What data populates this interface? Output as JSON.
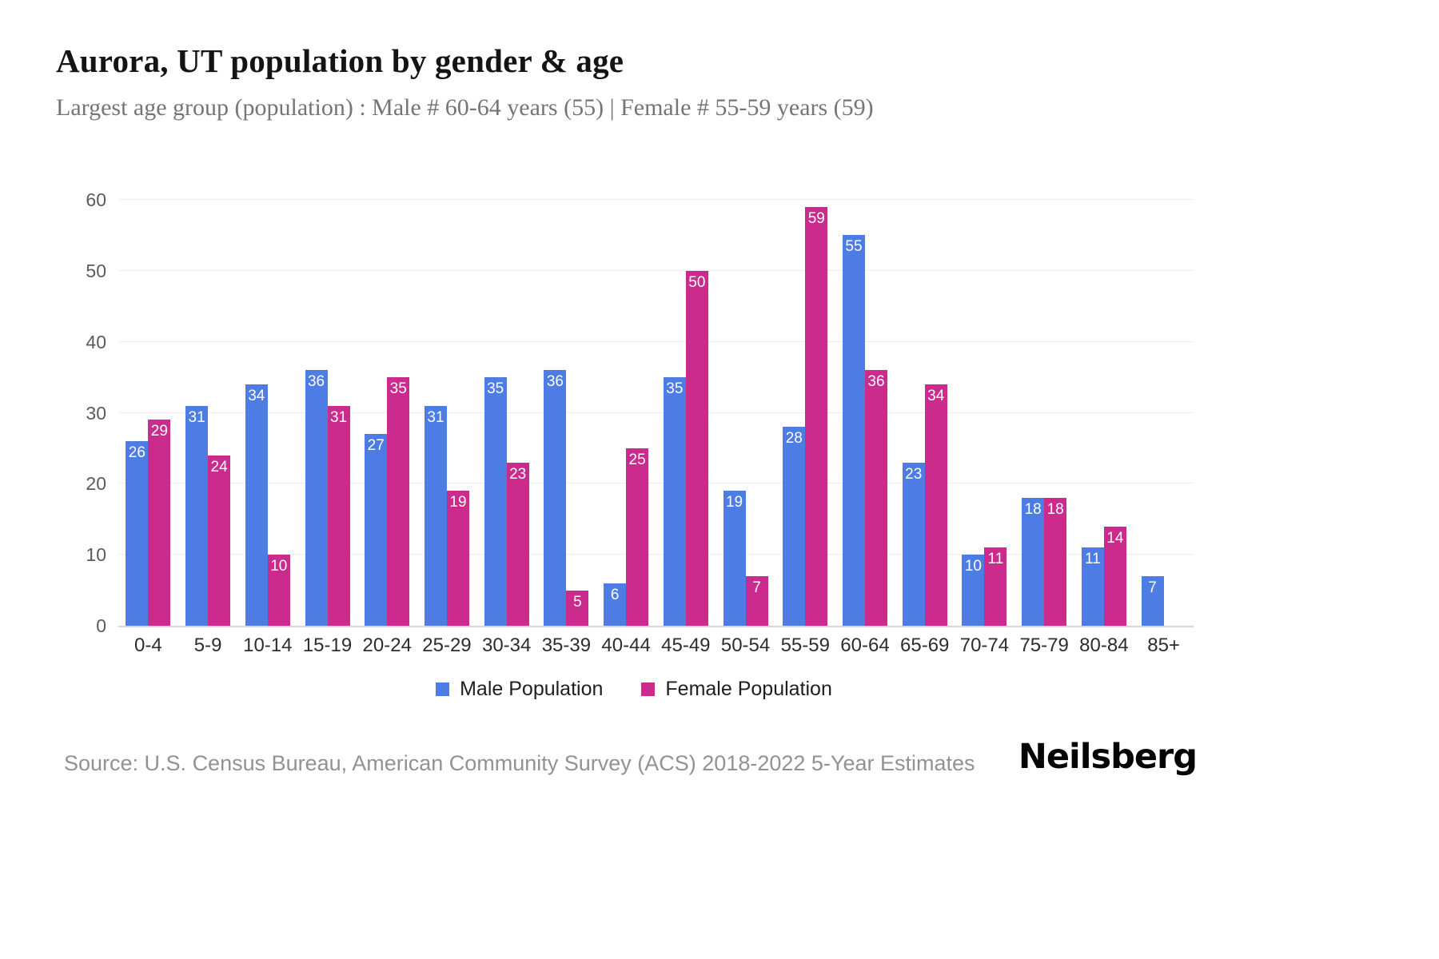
{
  "header": {
    "title": "Aurora, UT population by gender & age",
    "subtitle": "Largest age group (population) : Male # 60-64 years (55) | Female # 55-59 years (59)"
  },
  "chart_data": {
    "type": "bar",
    "title": "Aurora, UT population by gender & age",
    "categories": [
      "0-4",
      "5-9",
      "10-14",
      "15-19",
      "20-24",
      "25-29",
      "30-34",
      "35-39",
      "40-44",
      "45-49",
      "50-54",
      "55-59",
      "60-64",
      "65-69",
      "70-74",
      "75-79",
      "80-84",
      "85+"
    ],
    "series": [
      {
        "name": "Male Population",
        "color": "#4d7de4",
        "values": [
          26,
          31,
          34,
          36,
          27,
          31,
          35,
          36,
          6,
          35,
          19,
          28,
          55,
          23,
          10,
          18,
          11,
          7
        ]
      },
      {
        "name": "Female Population",
        "color": "#ca2b8d",
        "values": [
          29,
          24,
          10,
          31,
          35,
          19,
          23,
          5,
          25,
          50,
          7,
          59,
          36,
          34,
          11,
          18,
          14,
          0
        ]
      }
    ],
    "xlabel": "",
    "ylabel": "",
    "ylim": [
      0,
      60
    ],
    "yticks": [
      0,
      10,
      20,
      30,
      40,
      50,
      60
    ],
    "grid": true,
    "legend_position": "bottom",
    "value_labels": "inside-top-white"
  },
  "footer": {
    "source": "Source: U.S. Census Bureau, American Community Survey (ACS) 2018-2022 5-Year Estimates",
    "brand": "Neilsberg"
  }
}
